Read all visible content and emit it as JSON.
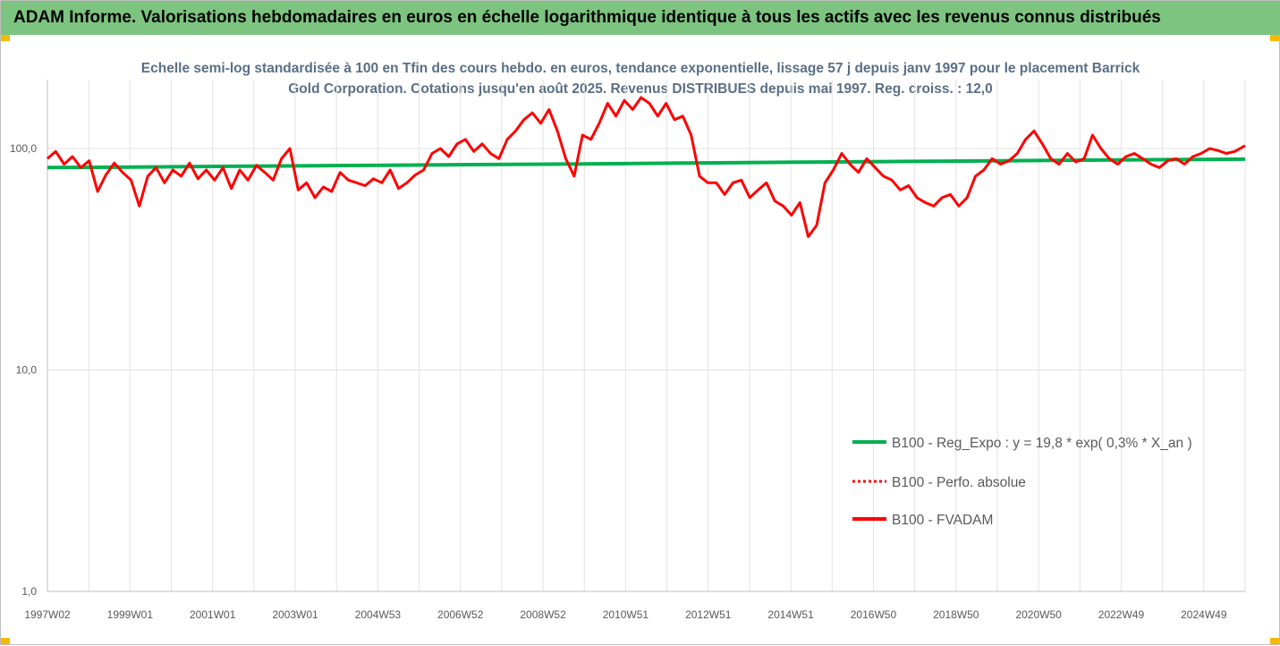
{
  "header": {
    "title": "ADAM Informe. Valorisations hebdomadaires en euros en échelle logarithmique identique à tous les actifs avec les revenus connus distribués"
  },
  "chart_data": {
    "type": "line",
    "title": "Echelle semi-log standardisée à 100 en Tfin des cours hebdo. en euros, tendance exponentielle, lissage 57 j depuis janv 1997 pour le placement Barrick Gold Corporation. Cotations jusqu'en août 2025. Revenus DISTRIBUES depuis mai 1997. Reg. croiss. : 12,0",
    "y_scale": "log",
    "ylim": [
      1,
      200
    ],
    "y_ticks": [
      "1,0",
      "10,0",
      "100,0"
    ],
    "y_tick_values": [
      1,
      10,
      100
    ],
    "x_ticks": [
      "1997W02",
      "1999W01",
      "2001W01",
      "2003W01",
      "2004W53",
      "2006W52",
      "2008W52",
      "2010W51",
      "2012W51",
      "2014W51",
      "2016W50",
      "2018W50",
      "2020W50",
      "2022W49",
      "2024W49"
    ],
    "x_range_years": [
      1997.0,
      2025.65
    ],
    "grid_vertical": true,
    "legend_position": "lower-right",
    "series": [
      {
        "name": "B100 - Reg_Expo : y = 19,8 * exp( 0,3% *  X_an )",
        "color": "#00b050",
        "style": "solid",
        "x": [
          1997.0,
          1999.0,
          2001.0,
          2003.0,
          2005.0,
          2007.0,
          2009.0,
          2011.0,
          2013.0,
          2015.0,
          2017.0,
          2019.0,
          2021.0,
          2023.0,
          2025.65
        ],
        "y": [
          82,
          82.5,
          83,
          83.5,
          84,
          84.6,
          85,
          85.6,
          86.2,
          86.8,
          87.3,
          87.8,
          88.4,
          88.9,
          89.5
        ]
      },
      {
        "name": "B100 - Perfo. absolue",
        "color": "#ff0000",
        "style": "dotted",
        "x": [],
        "y": []
      },
      {
        "name": "B100 - FVADAM",
        "color": "#ff0000",
        "style": "solid",
        "x": [
          1997.0,
          1997.2,
          1997.4,
          1997.6,
          1997.8,
          1998.0,
          1998.2,
          1998.4,
          1998.6,
          1998.8,
          1999.0,
          1999.2,
          1999.4,
          1999.6,
          1999.8,
          2000.0,
          2000.2,
          2000.4,
          2000.6,
          2000.8,
          2001.0,
          2001.2,
          2001.4,
          2001.6,
          2001.8,
          2002.0,
          2002.2,
          2002.4,
          2002.6,
          2002.8,
          2003.0,
          2003.2,
          2003.4,
          2003.6,
          2003.8,
          2004.0,
          2004.2,
          2004.4,
          2004.6,
          2004.8,
          2005.0,
          2005.2,
          2005.4,
          2005.6,
          2005.8,
          2006.0,
          2006.2,
          2006.4,
          2006.6,
          2006.8,
          2007.0,
          2007.2,
          2007.4,
          2007.6,
          2007.8,
          2008.0,
          2008.2,
          2008.4,
          2008.6,
          2008.8,
          2009.0,
          2009.2,
          2009.4,
          2009.6,
          2009.8,
          2010.0,
          2010.2,
          2010.4,
          2010.6,
          2010.8,
          2011.0,
          2011.2,
          2011.4,
          2011.6,
          2011.8,
          2012.0,
          2012.2,
          2012.4,
          2012.6,
          2012.8,
          2013.0,
          2013.2,
          2013.4,
          2013.6,
          2013.8,
          2014.0,
          2014.2,
          2014.4,
          2014.6,
          2014.8,
          2015.0,
          2015.2,
          2015.4,
          2015.6,
          2015.8,
          2016.0,
          2016.2,
          2016.4,
          2016.6,
          2016.8,
          2017.0,
          2017.2,
          2017.4,
          2017.6,
          2017.8,
          2018.0,
          2018.2,
          2018.4,
          2018.6,
          2018.8,
          2019.0,
          2019.2,
          2019.4,
          2019.6,
          2019.8,
          2020.0,
          2020.2,
          2020.4,
          2020.6,
          2020.8,
          2021.0,
          2021.2,
          2021.4,
          2021.6,
          2021.8,
          2022.0,
          2022.2,
          2022.4,
          2022.6,
          2022.8,
          2023.0,
          2023.2,
          2023.4,
          2023.6,
          2023.8,
          2024.0,
          2024.2,
          2024.4,
          2024.6,
          2024.8,
          2025.0,
          2025.2,
          2025.4,
          2025.65
        ],
        "y": [
          90,
          97,
          85,
          92,
          82,
          88,
          64,
          76,
          86,
          78,
          72,
          55,
          75,
          82,
          70,
          80,
          75,
          86,
          73,
          80,
          72,
          82,
          66,
          80,
          72,
          84,
          78,
          72,
          90,
          100,
          65,
          70,
          60,
          67,
          64,
          78,
          72,
          70,
          68,
          73,
          70,
          80,
          66,
          70,
          76,
          80,
          95,
          100,
          92,
          105,
          110,
          97,
          105,
          95,
          90,
          110,
          120,
          135,
          145,
          130,
          150,
          120,
          90,
          75,
          115,
          110,
          130,
          160,
          140,
          165,
          150,
          170,
          160,
          140,
          160,
          135,
          140,
          115,
          75,
          70,
          70,
          62,
          70,
          72,
          60,
          65,
          70,
          58,
          55,
          50,
          57,
          40,
          45,
          70,
          80,
          95,
          85,
          78,
          90,
          82,
          75,
          72,
          65,
          68,
          60,
          57,
          55,
          60,
          62,
          55,
          60,
          75,
          80,
          90,
          85,
          88,
          95,
          110,
          120,
          105,
          90,
          85,
          95,
          87,
          90,
          115,
          100,
          90,
          85,
          92,
          95,
          90,
          85,
          82,
          88,
          90,
          85,
          92,
          95,
          100,
          98,
          95,
          97,
          103
        ]
      }
    ]
  }
}
